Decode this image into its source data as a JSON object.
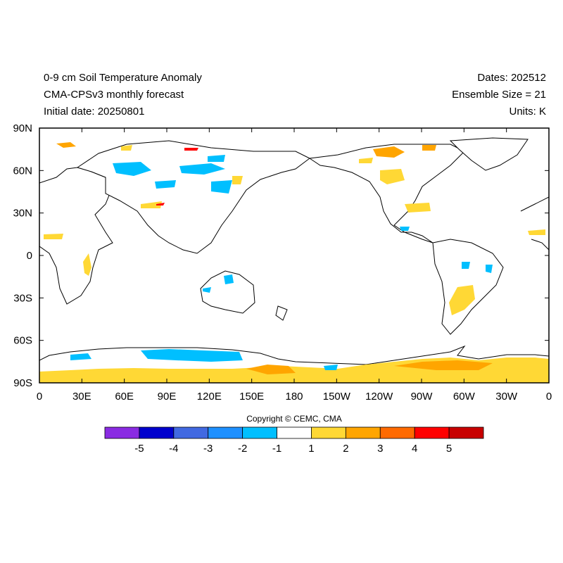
{
  "header": {
    "title": "0-9 cm Soil Temperature Anomaly",
    "model": "CMA-CPSv3 monthly forecast",
    "initial_date": "Initial date: 20250801",
    "dates": "Dates: 202512",
    "ensemble": "Ensemble Size = 21",
    "units": "Units: K"
  },
  "map": {
    "lon_ticks": [
      "0",
      "30E",
      "60E",
      "90E",
      "120E",
      "150E",
      "180",
      "150W",
      "120W",
      "90W",
      "60W",
      "30W",
      "0"
    ],
    "lat_ticks": [
      "90N",
      "60N",
      "30N",
      "0",
      "30S",
      "60S",
      "90S"
    ]
  },
  "colorbar": {
    "labels": [
      "-5",
      "-4",
      "-3",
      "-2",
      "-1",
      "1",
      "2",
      "3",
      "4",
      "5"
    ],
    "colors": [
      "#8a2be2",
      "#0000cd",
      "#4169e1",
      "#1e90ff",
      "#00bfff",
      "#ffffff",
      "#ffd835",
      "#ffa500",
      "#ff6a00",
      "#ff0000",
      "#c80000"
    ]
  },
  "copyright": "Copyright © CEMC, CMA"
}
